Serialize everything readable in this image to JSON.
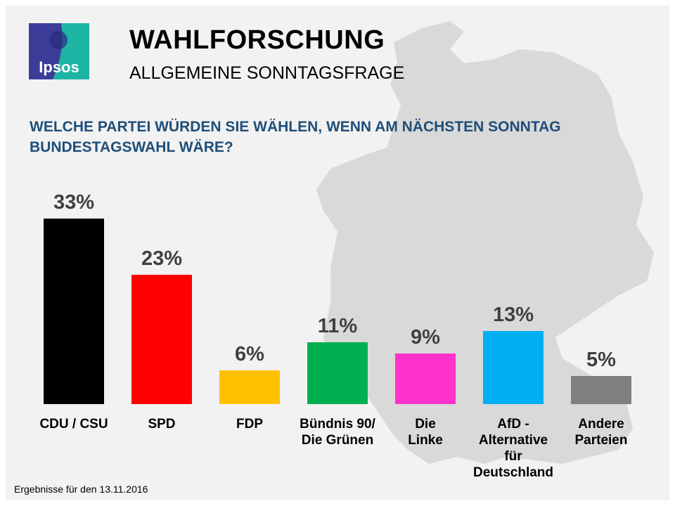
{
  "header": {
    "logo_text": "Ipsos",
    "title": "WAHLFORSCHUNG",
    "subtitle": "ALLGEMEINE SONNTAGSFRAGE",
    "question": "WELCHE PARTEI WÜRDEN SIE WÄHLEN, WENN AM NÄCHSTEN SONNTAG BUNDESTAGSWAHL WÄRE?"
  },
  "footer": "Ergebnisse für den 13.11.2016",
  "chart_data": {
    "type": "bar",
    "categories": [
      "CDU / CSU",
      "SPD",
      "FDP",
      "Bündnis 90/\nDie Grünen",
      "Die\nLinke",
      "AfD -\nAlternative\nfür\nDeutschland",
      "Andere\nParteien"
    ],
    "values": [
      33,
      23,
      6,
      11,
      9,
      13,
      5
    ],
    "data_labels": [
      "33%",
      "23%",
      "6%",
      "11%",
      "9%",
      "13%",
      "5%"
    ],
    "colors": [
      "#000000",
      "#ff0000",
      "#ffc000",
      "#00b050",
      "#ff33cc",
      "#00b0f0",
      "#808080"
    ],
    "unit": "%",
    "ylim": [
      0,
      35
    ],
    "grid": false,
    "legend": "none"
  },
  "colors": {
    "question": "#1f4e79",
    "background": "#f2f2f2",
    "map": "#d9d9d9",
    "logo_purple": "#3c3c99",
    "logo_teal": "#1eb4a4"
  }
}
